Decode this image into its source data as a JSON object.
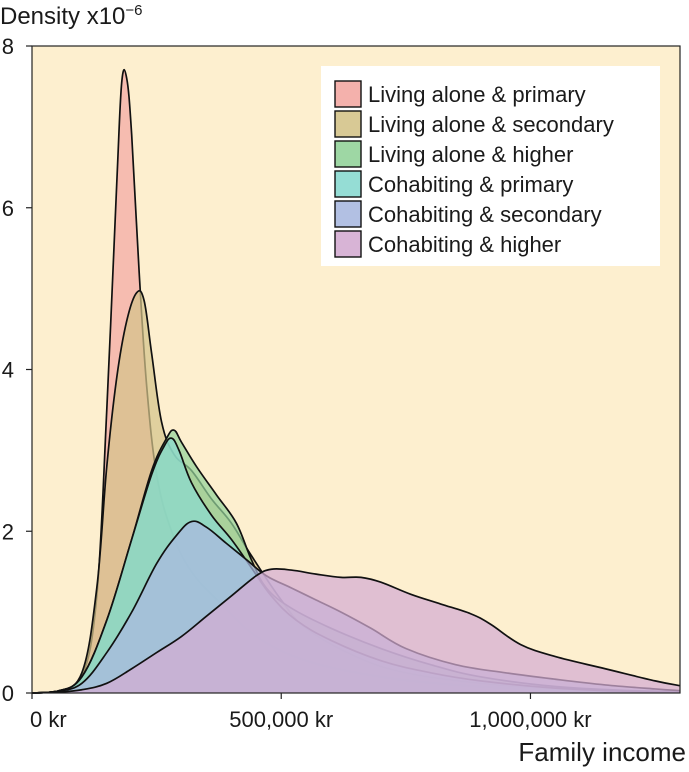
{
  "chart_data": {
    "type": "area",
    "title": "",
    "ylabel": "Density",
    "ylabel_multiplier": "x10",
    "ylabel_exponent": "−6",
    "xlabel": "Family income",
    "xlim": [
      0,
      1300000
    ],
    "ylim": [
      0,
      8
    ],
    "x_ticks": [
      {
        "value": 0,
        "label": "0 kr"
      },
      {
        "value": 500000,
        "label": "500,000 kr"
      },
      {
        "value": 1000000,
        "label": "1,000,000 kr"
      }
    ],
    "y_ticks": [
      {
        "value": 0,
        "label": "0"
      },
      {
        "value": 2,
        "label": "2"
      },
      {
        "value": 4,
        "label": "4"
      },
      {
        "value": 6,
        "label": "6"
      },
      {
        "value": 8,
        "label": "8"
      }
    ],
    "grid": false,
    "legend_position": "top-right",
    "background_color": "#fdefcf",
    "series": [
      {
        "name": "Living alone & primary",
        "color": "#f3a8a3",
        "points": [
          [
            0,
            0
          ],
          [
            50000,
            0.02
          ],
          [
            100000,
            0.2
          ],
          [
            130000,
            1.2
          ],
          [
            150000,
            3.5
          ],
          [
            170000,
            6.3
          ],
          [
            180000,
            7.55
          ],
          [
            190000,
            7.6
          ],
          [
            200000,
            6.9
          ],
          [
            215000,
            5.2
          ],
          [
            230000,
            3.8
          ],
          [
            250000,
            2.7
          ],
          [
            280000,
            2.0
          ],
          [
            320000,
            1.5
          ],
          [
            380000,
            1.1
          ],
          [
            450000,
            0.7
          ],
          [
            550000,
            0.4
          ],
          [
            700000,
            0.2
          ],
          [
            850000,
            0.1
          ],
          [
            1000000,
            0.05
          ],
          [
            1150000,
            0.02
          ],
          [
            1300000,
            0.01
          ]
        ]
      },
      {
        "name": "Living alone & secondary",
        "color": "#d4c38a",
        "points": [
          [
            0,
            0
          ],
          [
            50000,
            0.02
          ],
          [
            100000,
            0.25
          ],
          [
            130000,
            1.3
          ],
          [
            150000,
            2.8
          ],
          [
            170000,
            3.9
          ],
          [
            190000,
            4.6
          ],
          [
            210000,
            4.95
          ],
          [
            225000,
            4.85
          ],
          [
            240000,
            4.2
          ],
          [
            260000,
            3.35
          ],
          [
            285000,
            2.95
          ],
          [
            320000,
            2.75
          ],
          [
            360000,
            2.4
          ],
          [
            400000,
            2.1
          ],
          [
            440000,
            1.7
          ],
          [
            500000,
            1.15
          ],
          [
            550000,
            0.8
          ],
          [
            650000,
            0.45
          ],
          [
            750000,
            0.25
          ],
          [
            900000,
            0.12
          ],
          [
            1050000,
            0.05
          ],
          [
            1200000,
            0.02
          ],
          [
            1300000,
            0.01
          ]
        ]
      },
      {
        "name": "Living alone & higher",
        "color": "#93d39a",
        "points": [
          [
            0,
            0
          ],
          [
            50000,
            0.02
          ],
          [
            100000,
            0.2
          ],
          [
            150000,
            0.9
          ],
          [
            200000,
            1.9
          ],
          [
            240000,
            2.75
          ],
          [
            270000,
            3.15
          ],
          [
            285000,
            3.25
          ],
          [
            300000,
            3.1
          ],
          [
            330000,
            2.8
          ],
          [
            370000,
            2.45
          ],
          [
            410000,
            2.1
          ],
          [
            440000,
            1.65
          ],
          [
            470000,
            1.3
          ],
          [
            520000,
            1.05
          ],
          [
            600000,
            0.8
          ],
          [
            700000,
            0.55
          ],
          [
            800000,
            0.35
          ],
          [
            900000,
            0.2
          ],
          [
            1050000,
            0.08
          ],
          [
            1200000,
            0.03
          ],
          [
            1300000,
            0.02
          ]
        ]
      },
      {
        "name": "Cohabiting & primary",
        "color": "#8ad9d0",
        "points": [
          [
            0,
            0
          ],
          [
            50000,
            0.02
          ],
          [
            100000,
            0.2
          ],
          [
            150000,
            0.9
          ],
          [
            200000,
            1.9
          ],
          [
            240000,
            2.7
          ],
          [
            265000,
            3.05
          ],
          [
            280000,
            3.15
          ],
          [
            295000,
            3.0
          ],
          [
            320000,
            2.6
          ],
          [
            360000,
            2.2
          ],
          [
            400000,
            1.9
          ],
          [
            440000,
            1.55
          ],
          [
            480000,
            1.2
          ],
          [
            530000,
            0.9
          ],
          [
            600000,
            0.65
          ],
          [
            700000,
            0.4
          ],
          [
            800000,
            0.25
          ],
          [
            900000,
            0.15
          ],
          [
            1050000,
            0.06
          ],
          [
            1200000,
            0.02
          ],
          [
            1300000,
            0.01
          ]
        ]
      },
      {
        "name": "Cohabiting & secondary",
        "color": "#aab9e0",
        "points": [
          [
            0,
            0
          ],
          [
            50000,
            0.02
          ],
          [
            100000,
            0.12
          ],
          [
            150000,
            0.5
          ],
          [
            200000,
            1.0
          ],
          [
            250000,
            1.6
          ],
          [
            290000,
            1.95
          ],
          [
            320000,
            2.12
          ],
          [
            350000,
            2.05
          ],
          [
            390000,
            1.85
          ],
          [
            430000,
            1.65
          ],
          [
            470000,
            1.45
          ],
          [
            520000,
            1.3
          ],
          [
            570000,
            1.15
          ],
          [
            620000,
            1.0
          ],
          [
            680000,
            0.8
          ],
          [
            750000,
            0.55
          ],
          [
            850000,
            0.35
          ],
          [
            950000,
            0.25
          ],
          [
            1050000,
            0.17
          ],
          [
            1150000,
            0.1
          ],
          [
            1250000,
            0.05
          ],
          [
            1300000,
            0.03
          ]
        ]
      },
      {
        "name": "Cohabiting & higher",
        "color": "#d4acd2",
        "points": [
          [
            0,
            0
          ],
          [
            50000,
            0.01
          ],
          [
            100000,
            0.04
          ],
          [
            150000,
            0.12
          ],
          [
            200000,
            0.3
          ],
          [
            250000,
            0.5
          ],
          [
            300000,
            0.7
          ],
          [
            350000,
            0.95
          ],
          [
            400000,
            1.2
          ],
          [
            450000,
            1.45
          ],
          [
            480000,
            1.53
          ],
          [
            520000,
            1.52
          ],
          [
            570000,
            1.47
          ],
          [
            620000,
            1.43
          ],
          [
            660000,
            1.43
          ],
          [
            700000,
            1.37
          ],
          [
            760000,
            1.22
          ],
          [
            820000,
            1.1
          ],
          [
            880000,
            0.98
          ],
          [
            920000,
            0.85
          ],
          [
            980000,
            0.6
          ],
          [
            1050000,
            0.45
          ],
          [
            1150000,
            0.3
          ],
          [
            1250000,
            0.15
          ],
          [
            1300000,
            0.09
          ]
        ]
      }
    ]
  }
}
